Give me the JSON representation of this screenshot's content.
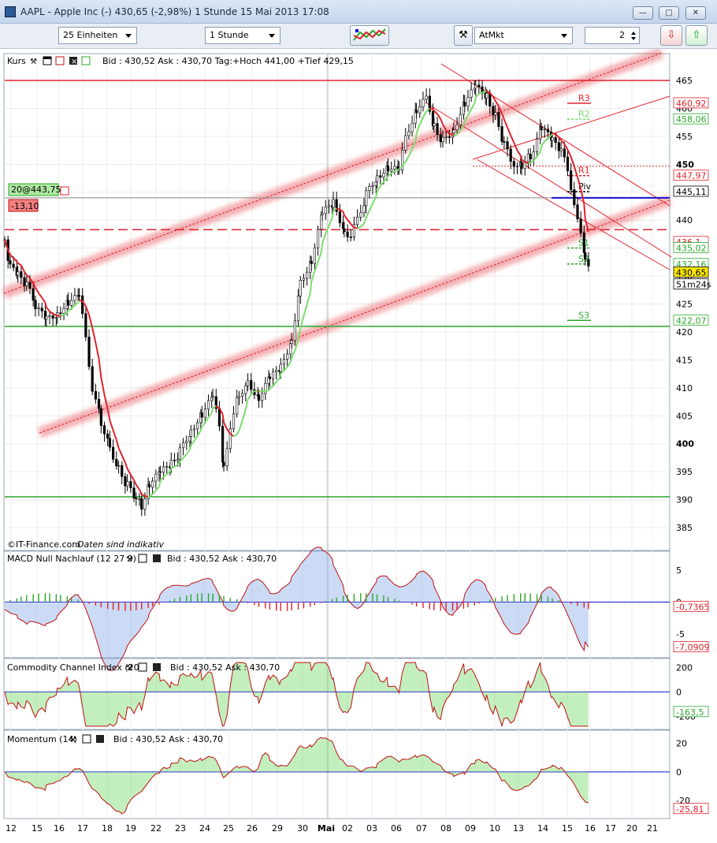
{
  "window": {
    "title": "AAPL - Apple Inc (-)    430,65  (-2,98%)    1 Stunde  15 Mai 2013 17:08"
  },
  "toolbar": {
    "units_select": "25 Einheiten",
    "interval_select": "1 Stunde",
    "order_type_select": "AtMkt",
    "quantity_value": "2"
  },
  "colors": {
    "candles": "#000000",
    "ma_up": "#7bdc6e",
    "ma_down": "#e0222a",
    "resistance": "#e0222a",
    "support": "#2aa82a",
    "pivot_blue": "#1010d0"
  },
  "panels": {
    "price": {
      "header": "Kurs",
      "quote": "Bid : 430,52  Ask : 430,70  Tag:+Hoch 441,00  +Tief 429,15",
      "watermark": "©IT-Finance.com",
      "disclaimer": "Daten sind indikativ",
      "indicator_value": "20@443,75",
      "indicator_diff": "-13,10",
      "y_ticks": [
        "465",
        "460",
        "455",
        "450",
        "445",
        "440",
        "435",
        "430",
        "425",
        "420",
        "415",
        "410",
        "405",
        "400",
        "395",
        "390",
        "385"
      ],
      "price_tags": [
        {
          "value": "460,92",
          "color": "#e0222a"
        },
        {
          "value": "458,06",
          "color": "#2aa82a"
        },
        {
          "value": "447,97",
          "color": "#e0222a"
        },
        {
          "value": "445,11",
          "color": "#000000"
        },
        {
          "value": "436,1",
          "color": "#e0222a"
        },
        {
          "value": "435,02",
          "color": "#2aa82a"
        },
        {
          "value": "432,16",
          "color": "#2aa82a"
        },
        {
          "value": "430,65",
          "color": "#000000"
        },
        {
          "value": "51m24s",
          "color": "#000000"
        },
        {
          "value": "422,07",
          "color": "#2aa82a"
        }
      ],
      "pivot_labels": [
        "R3",
        "R2",
        "R1",
        "Piv",
        "S1",
        "S2",
        "S3"
      ]
    },
    "macd": {
      "header": "MACD Null Nachlauf (12 27 9)",
      "quote": "Bid : 430,52  Ask : 430,70",
      "y_ticks": [
        "5",
        "0",
        "-5"
      ],
      "tags": [
        "-0,7365",
        "-7,0909"
      ]
    },
    "cci": {
      "header": "Commodity Channel Index (20)",
      "quote": "Bid : 430,52  Ask : 430,70",
      "y_ticks": [
        "200",
        "0",
        "-200"
      ],
      "tags": [
        "-163,5"
      ]
    },
    "momentum": {
      "header": "Momentum (14)",
      "quote": "Bid : 430,52  Ask : 430,70",
      "y_ticks": [
        "20",
        "0",
        "-20"
      ],
      "tags": [
        "-25,81"
      ]
    }
  },
  "chart_data": {
    "type": "line",
    "y_range": [
      383,
      467
    ],
    "x_labels": [
      "12",
      "15",
      "16",
      "17",
      "18",
      "19",
      "22",
      "23",
      "24",
      "25",
      "26",
      "29",
      "30",
      "Mai",
      "02",
      "03",
      "06",
      "07",
      "08",
      "09",
      "10",
      "13",
      "14",
      "15",
      "16",
      "17",
      "20",
      "21"
    ],
    "close_series": [
      [
        0,
        436.5
      ],
      [
        5,
        431.5
      ],
      [
        12,
        430.0
      ],
      [
        20,
        428.5
      ],
      [
        28,
        424.5
      ],
      [
        38,
        422.0
      ],
      [
        48,
        423.5
      ],
      [
        58,
        425.5
      ],
      [
        68,
        426.0
      ],
      [
        74,
        419.0
      ],
      [
        80,
        410.0
      ],
      [
        88,
        404.0
      ],
      [
        96,
        399.5
      ],
      [
        104,
        395.5
      ],
      [
        112,
        392.5
      ],
      [
        120,
        390.0
      ],
      [
        125,
        389.0
      ],
      [
        132,
        393.0
      ],
      [
        142,
        394.5
      ],
      [
        152,
        396.5
      ],
      [
        160,
        398.5
      ],
      [
        170,
        402.5
      ],
      [
        180,
        405.5
      ],
      [
        190,
        408.0
      ],
      [
        196,
        403.0
      ],
      [
        200,
        395.5
      ],
      [
        206,
        403.5
      ],
      [
        214,
        409.0
      ],
      [
        222,
        411.0
      ],
      [
        232,
        408.5
      ],
      [
        242,
        411.5
      ],
      [
        252,
        413.5
      ],
      [
        262,
        419.0
      ],
      [
        270,
        429.0
      ],
      [
        280,
        433.0
      ],
      [
        290,
        441.0
      ],
      [
        300,
        443.0
      ],
      [
        310,
        438.5
      ],
      [
        316,
        437.0
      ],
      [
        322,
        440.0
      ],
      [
        330,
        444.5
      ],
      [
        340,
        448.0
      ],
      [
        350,
        449.5
      ],
      [
        360,
        448.5
      ],
      [
        366,
        455.0
      ],
      [
        376,
        460.0
      ],
      [
        385,
        461.5
      ],
      [
        392,
        457.0
      ],
      [
        400,
        454.0
      ],
      [
        410,
        456.5
      ],
      [
        420,
        461.0
      ],
      [
        430,
        463.5
      ],
      [
        440,
        462.5
      ],
      [
        448,
        458.5
      ],
      [
        456,
        453.5
      ],
      [
        462,
        450.5
      ],
      [
        472,
        450.0
      ],
      [
        480,
        451.5
      ],
      [
        490,
        456.5
      ],
      [
        500,
        454.0
      ],
      [
        508,
        452.5
      ],
      [
        514,
        448.5
      ],
      [
        520,
        443.5
      ],
      [
        526,
        437.0
      ],
      [
        530,
        432.5
      ],
      [
        534,
        430.5
      ]
    ],
    "levels": {
      "R3": 460.92,
      "R2": 458.06,
      "R1": 447.97,
      "Piv": 445.11,
      "S1": 435.02,
      "S2": 432.16,
      "S3": 422.07,
      "last": 430.65
    },
    "horizontal_lines": [
      {
        "value": 465.0,
        "color": "#e0222a",
        "style": "band"
      },
      {
        "value": 438.3,
        "color": "#e0222a",
        "style": "dashed-band"
      },
      {
        "value": 421.0,
        "color": "#2aa82a",
        "style": "band"
      },
      {
        "value": 390.5,
        "color": "#2aa82a",
        "style": "band"
      },
      {
        "value": 444.0,
        "color": "#1010d0",
        "style": "solid"
      }
    ],
    "macd_range": [
      -8.5,
      7
    ],
    "cci_range": [
      -300,
      260
    ],
    "momentum_range": [
      -32,
      28
    ]
  }
}
